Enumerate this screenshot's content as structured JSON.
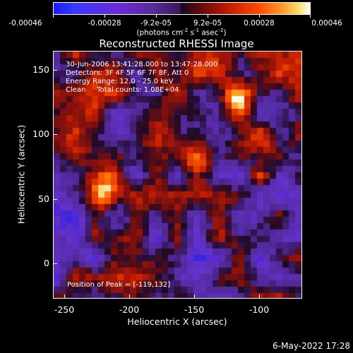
{
  "colorbar": {
    "ticks": [
      "-0.00046",
      "-0.00028",
      "-9.2e-05",
      "9.2e-05",
      "0.00028",
      "0.00046"
    ],
    "units_prefix": "(photons cm",
    "units_sup1": "-2",
    "units_mid1": " s",
    "units_sup2": "-1",
    "units_mid2": " asec",
    "units_sup3": "-2",
    "units_suffix": ")"
  },
  "title": "Reconstructed RHESSI Image",
  "annotation": {
    "line1": "30-Jun-2006 13:41:28.000 to 13:47:28.000",
    "line2": "Detectors: 3F 4F 5F 6F 7F 8F, Att 0",
    "line3": "Energy Range: 12.0 - 25.0 keV",
    "line4": "Clean     Total counts: 1.08E+04"
  },
  "peak_text": "Position of Peak = [-119,132]",
  "axes": {
    "xlabel": "Heliocentric X (arcsec)",
    "ylabel": "Heliocentric Y (arcsec)",
    "xticks": [
      "-250",
      "-200",
      "-150",
      "-100"
    ],
    "yticks": [
      "150",
      "100",
      "50",
      "0"
    ]
  },
  "timestamp": "6-May-2022 17:28",
  "chart_data": {
    "type": "heatmap",
    "title": "Reconstructed RHESSI Image",
    "xlabel": "Heliocentric X (arcsec)",
    "ylabel": "Heliocentric Y (arcsec)",
    "xlim": [
      -262,
      -68
    ],
    "ylim": [
      -28,
      166
    ],
    "clim": [
      -0.00046,
      0.00046
    ],
    "colormap": "blue-purple-black-red-yellow-white",
    "peak": {
      "x": -119,
      "y": 132
    },
    "bright_sources": [
      {
        "x": -220,
        "y": 55
      },
      {
        "x": -119,
        "y": 132
      },
      {
        "x": -180,
        "y": 100
      },
      {
        "x": -150,
        "y": 75
      },
      {
        "x": -100,
        "y": 95
      }
    ]
  }
}
